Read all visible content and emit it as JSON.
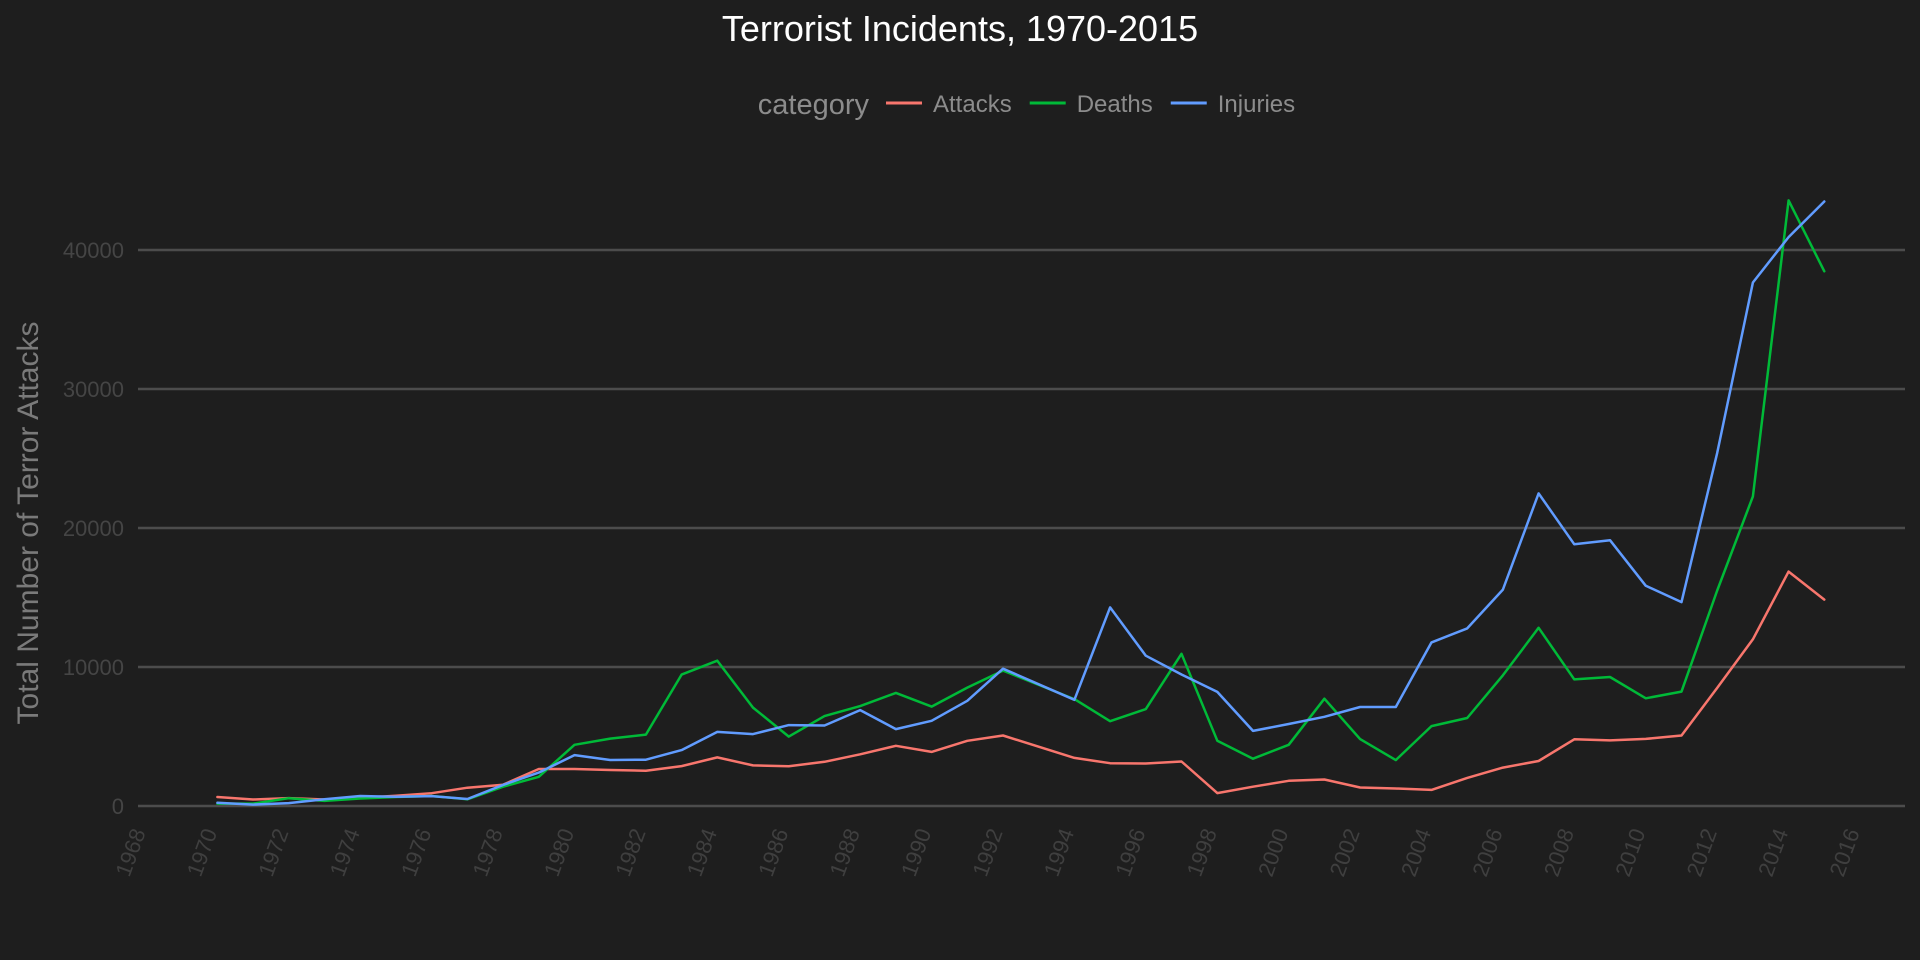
{
  "chart_data": {
    "type": "line",
    "title": "Terrorist Incidents, 1970-2015",
    "xlabel": "",
    "ylabel": "Total Number of Terror Attacks",
    "legend": {
      "title": "category",
      "placement": "top"
    },
    "xlim": [
      1968,
      2016
    ],
    "ylim": [
      0,
      45000
    ],
    "x_ticks": [
      1968,
      1970,
      1972,
      1974,
      1976,
      1978,
      1980,
      1982,
      1984,
      1986,
      1988,
      1990,
      1992,
      1994,
      1996,
      1998,
      2000,
      2002,
      2004,
      2006,
      2008,
      2010,
      2012,
      2014,
      2016
    ],
    "y_ticks": [
      0,
      10000,
      20000,
      30000,
      40000
    ],
    "grid": "horizontal",
    "x": [
      1970,
      1971,
      1972,
      1973,
      1974,
      1975,
      1976,
      1977,
      1978,
      1979,
      1980,
      1981,
      1982,
      1983,
      1984,
      1985,
      1986,
      1987,
      1988,
      1989,
      1990,
      1991,
      1992,
      1994,
      1995,
      1996,
      1997,
      1998,
      1999,
      2000,
      2001,
      2002,
      2003,
      2004,
      2005,
      2006,
      2007,
      2008,
      2009,
      2010,
      2011,
      2012,
      2013,
      2014,
      2015
    ],
    "series": [
      {
        "name": "Attacks",
        "color": "#f8766d",
        "values": [
          650,
          470,
          570,
          470,
          580,
          740,
          920,
          1320,
          1530,
          2660,
          2660,
          2590,
          2540,
          2870,
          3500,
          2920,
          2860,
          3180,
          3720,
          4330,
          3890,
          4690,
          5070,
          3460,
          3080,
          3060,
          3200,
          930,
          1390,
          1810,
          1910,
          1330,
          1260,
          1160,
          2020,
          2760,
          3240,
          4800,
          4720,
          4830,
          5070,
          8500,
          11990,
          16860,
          14850
        ]
      },
      {
        "name": "Deaths",
        "color": "#00ba38",
        "values": [
          170,
          170,
          560,
          370,
          540,
          650,
          720,
          480,
          1390,
          2100,
          4400,
          4850,
          5140,
          9450,
          10450,
          7080,
          4990,
          6470,
          7190,
          8140,
          7150,
          8520,
          9740,
          7690,
          6100,
          6970,
          10950,
          4700,
          3400,
          4400,
          7720,
          4810,
          3300,
          5750,
          6330,
          9400,
          12820,
          9110,
          9280,
          7750,
          8230,
          15500,
          22270,
          43570,
          38470
        ]
      },
      {
        "name": "Injuries",
        "color": "#619cff",
        "values": [
          230,
          100,
          210,
          480,
          720,
          660,
          710,
          500,
          1520,
          2400,
          3660,
          3310,
          3330,
          4020,
          5330,
          5170,
          5820,
          5790,
          6900,
          5530,
          6130,
          7570,
          9880,
          7640,
          14290,
          10810,
          9460,
          8210,
          5400,
          5900,
          6420,
          7120,
          7120,
          11770,
          12780,
          15570,
          22490,
          18830,
          19120,
          15840,
          14670,
          25400,
          37660,
          40930,
          43490
        ]
      }
    ]
  }
}
